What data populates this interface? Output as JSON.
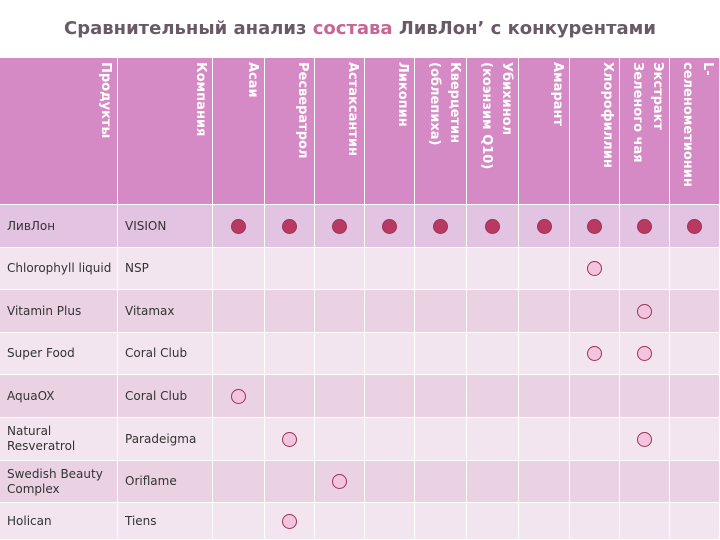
{
  "title": {
    "before": "Сравнительный анализ ",
    "highlight": "состава",
    "after": " ЛивЛон’ с конкурентами"
  },
  "table": {
    "headers": [
      "Продукты",
      "Компания",
      "Асаи",
      "Ресвератрол",
      "Астаксантин",
      "Ликопин",
      "Кверцетин\n(облепиха)",
      "Убихинол\n(коэнзим Q10)",
      "Амарант",
      "Хлорофиллин",
      "Экстракт\nЗеленого чая",
      "L-\nселенометионин"
    ],
    "rows": [
      {
        "product": "ЛивЛон",
        "company": "VISION",
        "cells": [
          true,
          true,
          true,
          true,
          true,
          true,
          true,
          true,
          true,
          true
        ]
      },
      {
        "product": "Chlorophyll liquid",
        "company": "NSP",
        "cells": [
          false,
          false,
          false,
          false,
          false,
          false,
          false,
          true,
          false,
          false
        ]
      },
      {
        "product": "Vitamin Plus",
        "company": "Vitamax",
        "cells": [
          false,
          false,
          false,
          false,
          false,
          false,
          false,
          false,
          true,
          false
        ]
      },
      {
        "product": "Super Food",
        "company": "Coral Club",
        "cells": [
          false,
          false,
          false,
          false,
          false,
          false,
          false,
          true,
          true,
          false
        ]
      },
      {
        "product": "AquaOX",
        "company": "Coral Club",
        "cells": [
          true,
          false,
          false,
          false,
          false,
          false,
          false,
          false,
          false,
          false
        ]
      },
      {
        "product": "Natural Resveratrol",
        "company": "Paradeigma",
        "cells": [
          false,
          true,
          false,
          false,
          false,
          false,
          false,
          false,
          true,
          false
        ]
      },
      {
        "product": "Swedish Beauty Complex",
        "company": "Oriflame",
        "cells": [
          false,
          false,
          true,
          false,
          false,
          false,
          false,
          false,
          false,
          false
        ]
      },
      {
        "product": "Holican",
        "company": "Tiens",
        "cells": [
          false,
          true,
          false,
          false,
          false,
          false,
          false,
          false,
          false,
          false
        ]
      }
    ]
  }
}
